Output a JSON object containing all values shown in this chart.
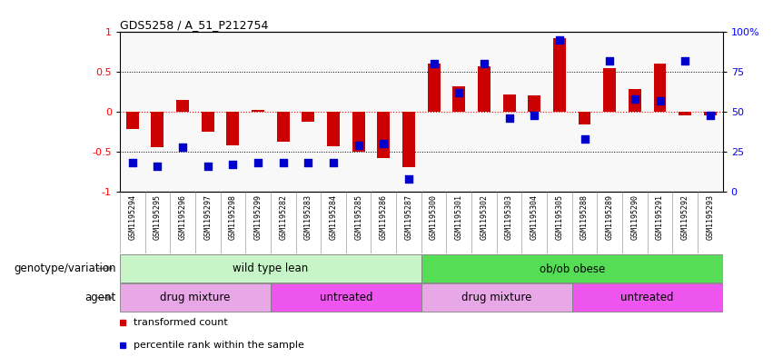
{
  "title": "GDS5258 / A_51_P212754",
  "samples": [
    "GSM1195294",
    "GSM1195295",
    "GSM1195296",
    "GSM1195297",
    "GSM1195298",
    "GSM1195299",
    "GSM1195282",
    "GSM1195283",
    "GSM1195284",
    "GSM1195285",
    "GSM1195286",
    "GSM1195287",
    "GSM1195300",
    "GSM1195301",
    "GSM1195302",
    "GSM1195303",
    "GSM1195304",
    "GSM1195305",
    "GSM1195288",
    "GSM1195289",
    "GSM1195290",
    "GSM1195291",
    "GSM1195292",
    "GSM1195293"
  ],
  "transformed_count": [
    -0.22,
    -0.45,
    0.15,
    -0.25,
    -0.42,
    0.02,
    -0.38,
    -0.13,
    -0.43,
    -0.5,
    -0.58,
    -0.7,
    0.6,
    0.32,
    0.57,
    0.22,
    0.2,
    0.93,
    -0.16,
    0.55,
    0.29,
    0.6,
    -0.05,
    -0.04
  ],
  "percentile_rank": [
    18,
    16,
    28,
    16,
    17,
    18,
    18,
    18,
    18,
    29,
    30,
    8,
    80,
    62,
    80,
    46,
    48,
    95,
    33,
    82,
    58,
    57,
    82,
    48
  ],
  "bar_color": "#cc0000",
  "dot_color": "#0000cc",
  "ylim_left": [
    -1,
    1
  ],
  "ylim_right": [
    0,
    100
  ],
  "yticks_left": [
    -1,
    -0.5,
    0,
    0.5,
    1
  ],
  "yticks_right": [
    0,
    25,
    50,
    75,
    100
  ],
  "ytick_labels_right": [
    "0",
    "25",
    "50",
    "75",
    "100%"
  ],
  "hline_values": [
    -0.5,
    0,
    0.5
  ],
  "hline_colors": [
    "black",
    "red",
    "black"
  ],
  "hline_styles": [
    "dotted",
    "dotted",
    "dotted"
  ],
  "genotype_groups": [
    {
      "label": "wild type lean",
      "start": 0,
      "end": 12,
      "color": "#c8f5c8"
    },
    {
      "label": "ob/ob obese",
      "start": 12,
      "end": 24,
      "color": "#55dd55"
    }
  ],
  "agent_groups": [
    {
      "label": "drug mixture",
      "start": 0,
      "end": 6,
      "color": "#e8a8e8"
    },
    {
      "label": "untreated",
      "start": 6,
      "end": 12,
      "color": "#ee55ee"
    },
    {
      "label": "drug mixture",
      "start": 12,
      "end": 18,
      "color": "#e8a8e8"
    },
    {
      "label": "untreated",
      "start": 18,
      "end": 24,
      "color": "#ee55ee"
    }
  ],
  "genotype_label": "genotype/variation",
  "agent_label": "agent",
  "legend_items": [
    {
      "label": "transformed count",
      "color": "#cc0000"
    },
    {
      "label": "percentile rank within the sample",
      "color": "#0000cc"
    }
  ],
  "bar_width": 0.5,
  "dot_size": 30,
  "background_color": "#ffffff",
  "xticklabel_bg": "#e8e8e8",
  "xticklabel_fontsize": 6.0,
  "label_fontsize": 8.5
}
